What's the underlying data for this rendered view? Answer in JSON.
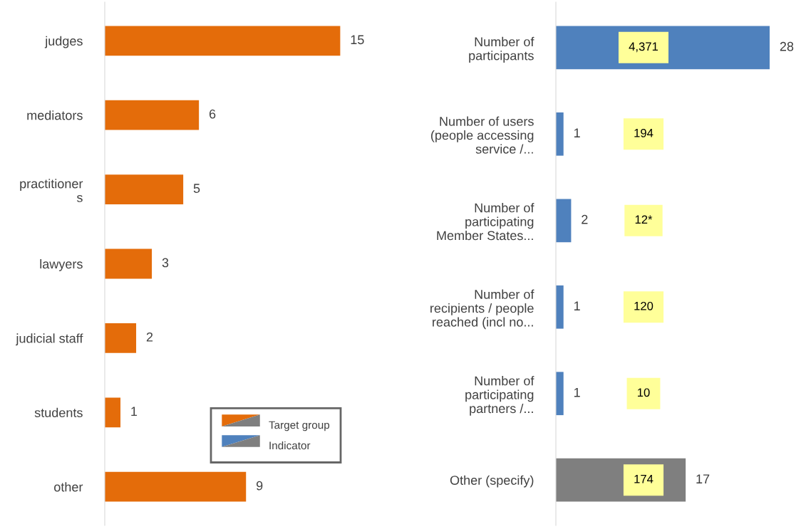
{
  "chart_data": [
    {
      "type": "bar",
      "orientation": "horizontal",
      "categories": [
        "judges",
        "mediators",
        "practitioner\ns",
        "lawyers",
        "judicial staff",
        "students",
        "other"
      ],
      "series": [
        {
          "name": "Target group",
          "color": "#e46c0a",
          "values": [
            15,
            6,
            5,
            3,
            2,
            1,
            9
          ]
        }
      ],
      "data_labels": true,
      "legend": "bottom right",
      "grid": false
    },
    {
      "type": "bar",
      "orientation": "horizontal",
      "categories": [
        "Number of\nparticipants",
        "Number of users\n(people accessing\nservice /...",
        "Number of\nparticipating\nMember States...",
        "Number of\nrecipients / people\nreached (incl no...",
        "Number of\nparticipating\npartners /...",
        "Other (specify)"
      ],
      "series": [
        {
          "name": "Indicator",
          "color": "#4f81bd",
          "colors": [
            "#4f81bd",
            "#4f81bd",
            "#4f81bd",
            "#4f81bd",
            "#4f81bd",
            "#7f7f7f"
          ],
          "values": [
            28,
            1,
            2,
            1,
            1,
            17
          ]
        }
      ],
      "data_labels": true,
      "legend": "left",
      "grid": false,
      "annotations": [
        "4,371",
        "194",
        "12*",
        "120",
        "10",
        "174"
      ]
    }
  ]
}
